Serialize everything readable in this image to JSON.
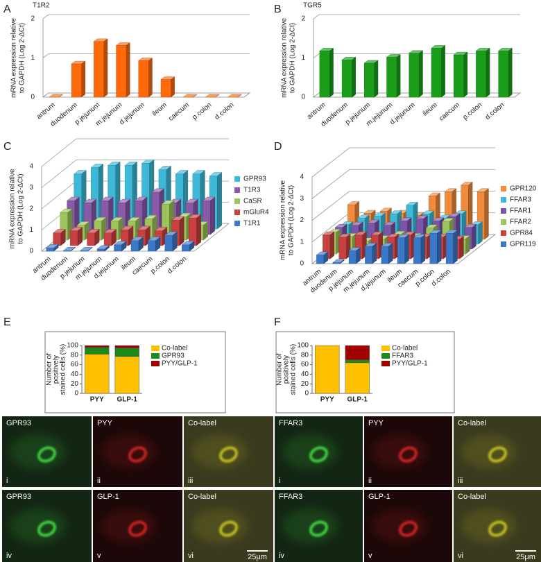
{
  "chart_data": [
    {
      "type": "bar3d",
      "label": "A",
      "title": "T1R2",
      "y_label": [
        "mRNA expression relative",
        "to GAPDH  (Log 2-ΔCt)"
      ],
      "categories": [
        "antrum",
        "duodenum",
        "p.jejunum",
        "m.jejunum",
        "d.jejunum",
        "ileum",
        "caecum",
        "p.colon",
        "d.colon"
      ],
      "values": [
        0,
        0.85,
        1.42,
        1.32,
        0.93,
        0.45,
        0,
        0,
        0
      ],
      "color": "#ff6a0d",
      "ylim": [
        0,
        2
      ],
      "yticks": [
        0,
        1,
        2
      ]
    },
    {
      "type": "bar3d",
      "label": "B",
      "title": "TGR5",
      "y_label": [
        "mRNA expression relative",
        "to GAPDH  (Log 2-ΔCt)"
      ],
      "categories": [
        "antrum",
        "duodenum",
        "p.jejunum",
        "m.jejunum",
        "d.jejunum",
        "ileum",
        "caecum",
        "p.colon",
        "d.colon"
      ],
      "values": [
        1.18,
        0.95,
        0.87,
        1.02,
        1.12,
        1.25,
        1.08,
        1.18,
        1.18
      ],
      "color": "#1a9e1a",
      "ylim": [
        0,
        2
      ],
      "yticks": [
        0,
        1,
        2
      ]
    },
    {
      "type": "bar3d",
      "label": "C",
      "y_label": [
        "mRNA expression relative",
        "to GAPDH  (Log 2-ΔCt)"
      ],
      "categories": [
        "antrum",
        "duodenum",
        "p.jejunum",
        "m.jejunum",
        "d.jejunum",
        "ileum",
        "caecum",
        "p.colon",
        "d.colon"
      ],
      "series": [
        {
          "name": "GPR93",
          "color": "#3db8d6",
          "values": [
            2.6,
            2.9,
            3.0,
            3.0,
            3.1,
            2.8,
            2.6,
            2.6,
            2.5
          ]
        },
        {
          "name": "T1R3",
          "color": "#8a5aa8",
          "values": [
            1.6,
            1.5,
            1.6,
            1.5,
            1.6,
            2.0,
            1.5,
            1.5,
            1.6
          ]
        },
        {
          "name": "CaSR",
          "color": "#9cc45a",
          "values": [
            1.3,
            0.7,
            0.9,
            0.9,
            0.9,
            1.0,
            1.7,
            1.1,
            0.7
          ]
        },
        {
          "name": "mGluR4",
          "color": "#c84040",
          "values": [
            0.6,
            0.7,
            0.6,
            0.6,
            0.75,
            0.75,
            0.7,
            1.2,
            1.3
          ]
        },
        {
          "name": "T1R1",
          "color": "#3c78c8",
          "values": [
            0.15,
            0.02,
            0.02,
            0.1,
            0.3,
            0.5,
            0.5,
            0.75,
            0.3
          ]
        }
      ],
      "ylim": [
        0,
        4
      ],
      "yticks": [
        0,
        1,
        2,
        3,
        4
      ]
    },
    {
      "type": "bar3d",
      "label": "D",
      "y_label": [
        "mRNA expression relative",
        "to GAPDH  (Log 2-ΔCt)"
      ],
      "categories": [
        "antrum",
        "duodenum",
        "p.jejunum",
        "m.jejunum",
        "d.jejunum",
        "ileum",
        "caecum",
        "p.colon",
        "d.colon"
      ],
      "series": [
        {
          "name": "GPR120",
          "color": "#f08a3c",
          "values": [
            1.6,
            1.2,
            1.3,
            1.2,
            1.1,
            2.0,
            2.2,
            2.5,
            2.2
          ]
        },
        {
          "name": "FFAR3",
          "color": "#3db8d6",
          "values": [
            0.9,
            1.2,
            1.3,
            1.4,
            1.8,
            1.4,
            1.2,
            1.4,
            0.9
          ]
        },
        {
          "name": "FFAR1",
          "color": "#7a55a8",
          "values": [
            1.0,
            1.1,
            1.2,
            1.1,
            1.3,
            1.4,
            1.3,
            1.5,
            1.0
          ]
        },
        {
          "name": "FFAR2",
          "color": "#9cc45a",
          "values": [
            1.0,
            0.8,
            0.6,
            0.7,
            0.9,
            0.8,
            1.2,
            1.5,
            0.7
          ]
        },
        {
          "name": "GPR84",
          "color": "#c84040",
          "values": [
            1.1,
            1.0,
            1.1,
            1.1,
            1.0,
            1.1,
            1.0,
            1.0,
            0.9
          ]
        },
        {
          "name": "GPR119",
          "color": "#3c78c8",
          "values": [
            0.4,
            0.05,
            0.6,
            0.8,
            0.8,
            1.2,
            1.2,
            1.4,
            1.4
          ]
        }
      ],
      "ylim": [
        0,
        4
      ],
      "yticks": [
        0,
        1,
        2,
        3,
        4
      ]
    },
    {
      "type": "stacked_bar",
      "label": "E",
      "y_label": [
        "Number of",
        "positively",
        "stained cells (%)"
      ],
      "categories": [
        "PYY",
        "GLP-1"
      ],
      "series": [
        {
          "name": "Co-label",
          "color": "#ffc000",
          "values": [
            82,
            77
          ]
        },
        {
          "name": "GPR93",
          "color": "#1a8a1a",
          "values": [
            14,
            18
          ]
        },
        {
          "name": "PYY/GLP-1",
          "color": "#a00000",
          "values": [
            4,
            5
          ]
        }
      ],
      "ylim": [
        0,
        100
      ],
      "yticks": [
        0,
        20,
        40,
        60,
        80,
        100
      ]
    },
    {
      "type": "stacked_bar",
      "label": "F",
      "y_label": [
        "Number of",
        "positively",
        "stained cells (%)"
      ],
      "categories": [
        "PYY",
        "GLP-1"
      ],
      "series": [
        {
          "name": "Co-label",
          "color": "#ffc000",
          "values": [
            100,
            64
          ]
        },
        {
          "name": "FFAR3",
          "color": "#1a8a1a",
          "values": [
            0,
            6
          ]
        },
        {
          "name": "PYY/GLP-1",
          "color": "#a00000",
          "values": [
            0,
            30
          ]
        }
      ],
      "ylim": [
        0,
        100
      ],
      "yticks": [
        0,
        20,
        40,
        60,
        80,
        100
      ]
    }
  ],
  "micrographs": [
    {
      "panels": [
        {
          "stain": "GPR93",
          "index": "i"
        },
        {
          "stain": "PYY",
          "index": "ii"
        },
        {
          "stain": "Co-label",
          "index": "iii"
        },
        {
          "stain": "GPR93",
          "index": "iv"
        },
        {
          "stain": "GLP-1",
          "index": "v"
        },
        {
          "stain": "Co-label",
          "index": "vi"
        }
      ],
      "scale_bar": "25μm"
    },
    {
      "panels": [
        {
          "stain": "FFAR3",
          "index": "i"
        },
        {
          "stain": "PYY",
          "index": "ii"
        },
        {
          "stain": "Co-label",
          "index": "iii"
        },
        {
          "stain": "FFAR3",
          "index": "iv"
        },
        {
          "stain": "GLP-1",
          "index": "v"
        },
        {
          "stain": "Co-label",
          "index": "vi"
        }
      ],
      "scale_bar": "25μm"
    }
  ]
}
